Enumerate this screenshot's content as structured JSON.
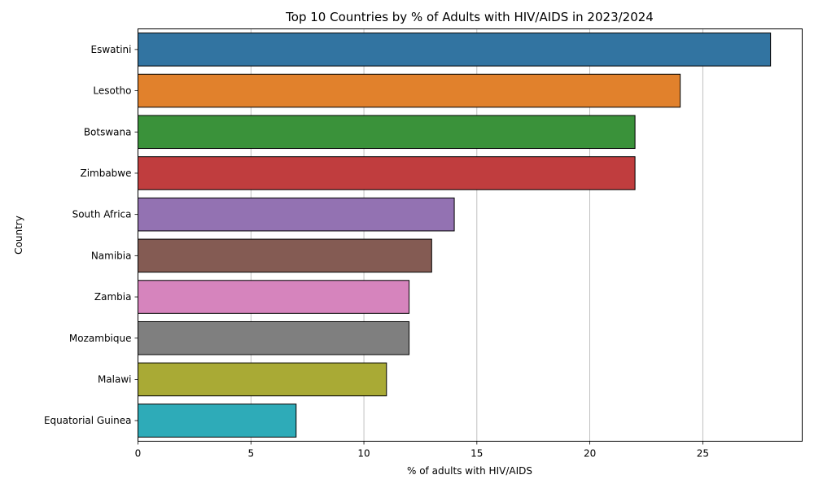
{
  "chart_data": {
    "type": "bar",
    "orientation": "horizontal",
    "title": "Top 10 Countries by % of Adults with HIV/AIDS in 2023/2024",
    "xlabel": "% of adults with HIV/AIDS",
    "ylabel": "Country",
    "xlim": [
      0,
      29.4
    ],
    "xticks": [
      0,
      5,
      10,
      15,
      20,
      25
    ],
    "grid": "vertical",
    "categories": [
      "Eswatini",
      "Lesotho",
      "Botswana",
      "Zimbabwe",
      "South Africa",
      "Namibia",
      "Zambia",
      "Mozambique",
      "Malawi",
      "Equatorial Guinea"
    ],
    "values": [
      28,
      24,
      22,
      22,
      14,
      13,
      12,
      12,
      11,
      7
    ],
    "colors": [
      "#3274a1",
      "#e1812c",
      "#3a923a",
      "#c03d3e",
      "#9372b2",
      "#845b53",
      "#d684bd",
      "#7f7f7f",
      "#a9aa35",
      "#2eabb8"
    ]
  }
}
